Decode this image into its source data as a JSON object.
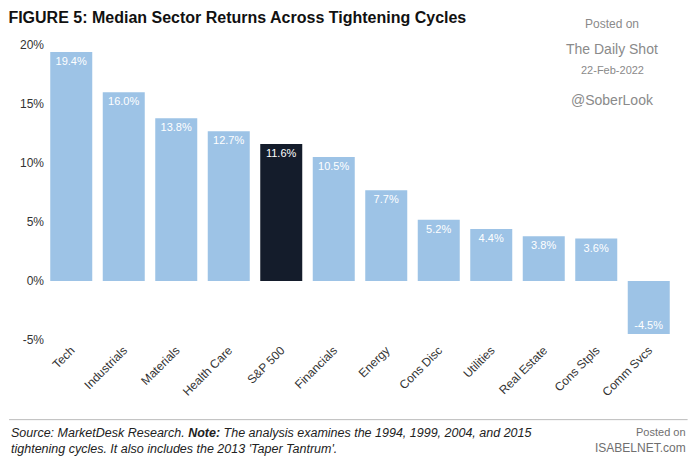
{
  "chart_data": {
    "type": "bar",
    "title": "FIGURE 5: Median Sector Returns Across Tightening Cycles",
    "categories": [
      "Tech",
      "Industrials",
      "Materials",
      "Health Care",
      "S&P 500",
      "Financials",
      "Energy",
      "Cons Disc",
      "Utilities",
      "Real Estate",
      "Cons Stpls",
      "Comm Svcs"
    ],
    "values": [
      19.4,
      16.0,
      13.8,
      12.7,
      11.6,
      10.5,
      7.7,
      5.2,
      4.4,
      3.8,
      3.6,
      -4.5
    ],
    "value_labels": [
      "19.4%",
      "16.0%",
      "13.8%",
      "12.7%",
      "11.6%",
      "10.5%",
      "7.7%",
      "5.2%",
      "4.4%",
      "3.8%",
      "3.6%",
      "-4.5%"
    ],
    "colors": [
      "#9dc3e6",
      "#9dc3e6",
      "#9dc3e6",
      "#9dc3e6",
      "#141c2b",
      "#9dc3e6",
      "#9dc3e6",
      "#9dc3e6",
      "#9dc3e6",
      "#9dc3e6",
      "#9dc3e6",
      "#9dc3e6"
    ],
    "ylim": [
      -5,
      20
    ],
    "yticks": [
      {
        "value": -5,
        "label": "-5%"
      },
      {
        "value": 0,
        "label": "0%"
      },
      {
        "value": 5,
        "label": "5%"
      },
      {
        "value": 10,
        "label": "10%"
      },
      {
        "value": 15,
        "label": "15%"
      },
      {
        "value": 20,
        "label": "20%"
      }
    ],
    "grid": false,
    "data_labels": true,
    "source": "Source: MarketDesk Research.",
    "note_label": "Note:",
    "note": [
      "The analysis examines the 1994, 1999, 2004, and 2015",
      "tightening cycles. It also includes the 2013 'Taper Tantrum'."
    ],
    "watermarks": [
      "Posted on",
      "The Daily Shot",
      "22-Feb-2022",
      "@SoberLook"
    ],
    "watermarks_bottom": [
      "Posted on",
      "ISABELNET.com"
    ]
  }
}
